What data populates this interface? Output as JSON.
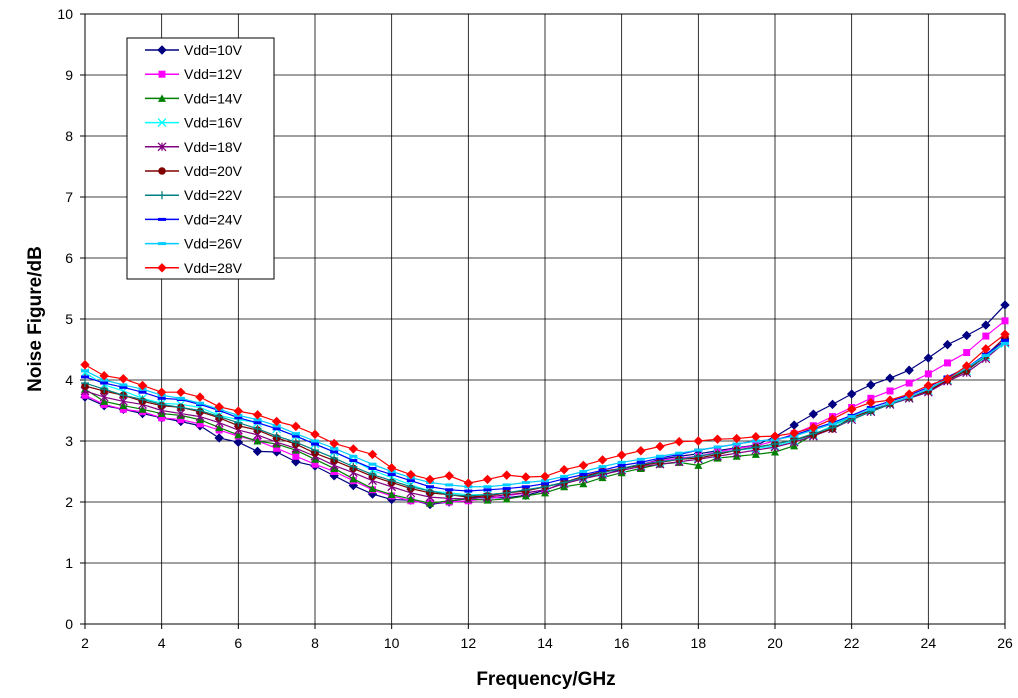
{
  "chart_data": {
    "type": "line",
    "title": "",
    "xlabel": "Frequency/GHz",
    "ylabel": "Noise Figure/dB",
    "xlim": [
      2,
      26
    ],
    "ylim": [
      0,
      10
    ],
    "xticks": [
      "2",
      "4",
      "6",
      "8",
      "10",
      "12",
      "14",
      "16",
      "18",
      "20",
      "22",
      "24",
      "26"
    ],
    "yticks": [
      "0",
      "1",
      "2",
      "3",
      "4",
      "5",
      "6",
      "7",
      "8",
      "9",
      "10"
    ],
    "grid": true,
    "legend_position": "top-left",
    "x": [
      2,
      2.5,
      3,
      3.5,
      4,
      4.5,
      5,
      5.5,
      6,
      6.5,
      7,
      7.5,
      8,
      8.5,
      9,
      9.5,
      10,
      10.5,
      11,
      11.5,
      12,
      12.5,
      13,
      13.5,
      14,
      14.5,
      15,
      15.5,
      16,
      16.5,
      17,
      17.5,
      18,
      18.5,
      19,
      19.5,
      20,
      20.5,
      21,
      21.5,
      22,
      22.5,
      23,
      23.5,
      24,
      24.5,
      25,
      25.5,
      26
    ],
    "series": [
      {
        "name": "Vdd=10V",
        "color": "#000080",
        "marker": "diamond",
        "values": [
          3.72,
          3.58,
          3.52,
          3.45,
          3.38,
          3.32,
          3.25,
          3.05,
          2.98,
          2.83,
          2.82,
          2.66,
          2.59,
          2.43,
          2.27,
          2.13,
          2.04,
          2.03,
          1.96,
          2.0,
          2.07,
          2.07,
          2.07,
          2.11,
          2.19,
          2.32,
          2.41,
          2.44,
          2.54,
          2.61,
          2.7,
          2.75,
          2.79,
          2.84,
          2.89,
          2.93,
          3.07,
          3.26,
          3.44,
          3.6,
          3.77,
          3.92,
          4.03,
          4.16,
          4.36,
          4.58,
          4.73,
          4.9,
          5.23
        ]
      },
      {
        "name": "Vdd=12V",
        "color": "#ff00ff",
        "marker": "square",
        "values": [
          3.75,
          3.6,
          3.52,
          3.48,
          3.38,
          3.35,
          3.28,
          3.18,
          3.08,
          3.0,
          2.88,
          2.75,
          2.62,
          2.5,
          2.35,
          2.2,
          2.1,
          2.02,
          1.98,
          2.0,
          2.02,
          2.05,
          2.1,
          2.15,
          2.2,
          2.3,
          2.4,
          2.5,
          2.55,
          2.62,
          2.68,
          2.72,
          2.75,
          2.82,
          2.88,
          2.92,
          3.0,
          3.12,
          3.25,
          3.4,
          3.55,
          3.7,
          3.82,
          3.95,
          4.1,
          4.28,
          4.45,
          4.72,
          4.97
        ]
      },
      {
        "name": "Vdd=14V",
        "color": "#008000",
        "marker": "triangle",
        "values": [
          3.85,
          3.65,
          3.58,
          3.52,
          3.45,
          3.42,
          3.35,
          3.22,
          3.1,
          3.0,
          2.95,
          2.85,
          2.7,
          2.55,
          2.38,
          2.22,
          2.12,
          2.05,
          1.98,
          2.02,
          2.05,
          2.03,
          2.05,
          2.1,
          2.15,
          2.25,
          2.3,
          2.4,
          2.48,
          2.55,
          2.62,
          2.65,
          2.6,
          2.72,
          2.75,
          2.78,
          2.82,
          2.92,
          3.1,
          3.25,
          3.4,
          3.5,
          3.62,
          3.72,
          3.82,
          4.0,
          4.18,
          4.4,
          4.65
        ]
      },
      {
        "name": "Vdd=16V",
        "color": "#00ffff",
        "marker": "x",
        "values": [
          4.12,
          3.92,
          3.82,
          3.7,
          3.62,
          3.6,
          3.55,
          3.42,
          3.35,
          3.3,
          3.2,
          3.08,
          2.95,
          2.82,
          2.68,
          2.52,
          2.4,
          2.28,
          2.18,
          2.15,
          2.12,
          2.12,
          2.15,
          2.2,
          2.25,
          2.32,
          2.4,
          2.48,
          2.55,
          2.6,
          2.65,
          2.7,
          2.72,
          2.78,
          2.85,
          2.88,
          2.92,
          3.0,
          3.1,
          3.25,
          3.38,
          3.5,
          3.6,
          3.7,
          3.82,
          4.0,
          4.15,
          4.38,
          4.6
        ]
      },
      {
        "name": "Vdd=18V",
        "color": "#800080",
        "marker": "star",
        "values": [
          3.82,
          3.72,
          3.65,
          3.6,
          3.5,
          3.45,
          3.4,
          3.3,
          3.18,
          3.1,
          2.98,
          2.88,
          2.75,
          2.6,
          2.48,
          2.35,
          2.25,
          2.15,
          2.08,
          2.06,
          2.05,
          2.08,
          2.12,
          2.15,
          2.2,
          2.3,
          2.38,
          2.45,
          2.52,
          2.58,
          2.62,
          2.66,
          2.7,
          2.75,
          2.8,
          2.85,
          2.9,
          2.98,
          3.08,
          3.2,
          3.35,
          3.48,
          3.6,
          3.7,
          3.8,
          3.98,
          4.12,
          4.35,
          4.62
        ]
      },
      {
        "name": "Vdd=20V",
        "color": "#800000",
        "marker": "circle",
        "values": [
          3.9,
          3.82,
          3.75,
          3.65,
          3.58,
          3.55,
          3.48,
          3.38,
          3.25,
          3.18,
          3.05,
          2.95,
          2.8,
          2.68,
          2.55,
          2.42,
          2.32,
          2.22,
          2.15,
          2.12,
          2.08,
          2.1,
          2.15,
          2.18,
          2.25,
          2.32,
          2.42,
          2.5,
          2.55,
          2.6,
          2.65,
          2.7,
          2.72,
          2.78,
          2.85,
          2.9,
          2.95,
          3.02,
          3.1,
          3.2,
          3.38,
          3.5,
          3.62,
          3.72,
          3.82,
          4.0,
          4.15,
          4.4,
          4.7
        ]
      },
      {
        "name": "Vdd=22V",
        "color": "#008080",
        "marker": "plus",
        "values": [
          3.95,
          3.85,
          3.75,
          3.68,
          3.6,
          3.55,
          3.5,
          3.4,
          3.3,
          3.2,
          3.08,
          2.98,
          2.85,
          2.72,
          2.58,
          2.45,
          2.35,
          2.25,
          2.18,
          2.12,
          2.1,
          2.12,
          2.15,
          2.2,
          2.25,
          2.32,
          2.4,
          2.48,
          2.55,
          2.62,
          2.66,
          2.7,
          2.75,
          2.8,
          2.85,
          2.9,
          2.95,
          3.02,
          3.12,
          3.22,
          3.35,
          3.48,
          3.6,
          3.72,
          3.85,
          4.02,
          4.18,
          4.4,
          4.65
        ]
      },
      {
        "name": "Vdd=24V",
        "color": "#0000ff",
        "marker": "dash",
        "values": [
          4.05,
          3.95,
          3.88,
          3.8,
          3.7,
          3.68,
          3.6,
          3.5,
          3.38,
          3.3,
          3.2,
          3.08,
          2.95,
          2.82,
          2.68,
          2.55,
          2.45,
          2.35,
          2.25,
          2.2,
          2.18,
          2.2,
          2.22,
          2.25,
          2.3,
          2.38,
          2.45,
          2.52,
          2.6,
          2.65,
          2.72,
          2.78,
          2.85,
          2.9,
          2.95,
          3.0,
          3.02,
          3.1,
          3.2,
          3.3,
          3.42,
          3.55,
          3.65,
          3.75,
          3.88,
          4.05,
          4.2,
          4.42,
          4.65
        ]
      },
      {
        "name": "Vdd=26V",
        "color": "#00ccff",
        "marker": "dash",
        "values": [
          4.15,
          4.0,
          3.92,
          3.85,
          3.75,
          3.7,
          3.62,
          3.52,
          3.42,
          3.35,
          3.25,
          3.12,
          3.0,
          2.88,
          2.75,
          2.62,
          2.5,
          2.4,
          2.32,
          2.28,
          2.25,
          2.25,
          2.28,
          2.32,
          2.35,
          2.42,
          2.5,
          2.58,
          2.65,
          2.7,
          2.75,
          2.8,
          2.85,
          2.9,
          2.95,
          3.0,
          3.02,
          3.08,
          3.18,
          3.28,
          3.4,
          3.52,
          3.62,
          3.72,
          3.85,
          4.02,
          4.2,
          4.4,
          4.6
        ]
      },
      {
        "name": "Vdd=28V",
        "color": "#ff0000",
        "marker": "diamond",
        "values": [
          4.25,
          4.07,
          4.02,
          3.91,
          3.8,
          3.8,
          3.72,
          3.56,
          3.49,
          3.43,
          3.32,
          3.24,
          3.11,
          2.96,
          2.87,
          2.78,
          2.56,
          2.45,
          2.37,
          2.43,
          2.31,
          2.37,
          2.44,
          2.41,
          2.42,
          2.53,
          2.6,
          2.69,
          2.77,
          2.84,
          2.91,
          2.99,
          3.0,
          3.03,
          3.04,
          3.07,
          3.08,
          3.13,
          3.22,
          3.36,
          3.52,
          3.63,
          3.67,
          3.77,
          3.91,
          4.02,
          4.23,
          4.51,
          4.75
        ]
      }
    ]
  }
}
